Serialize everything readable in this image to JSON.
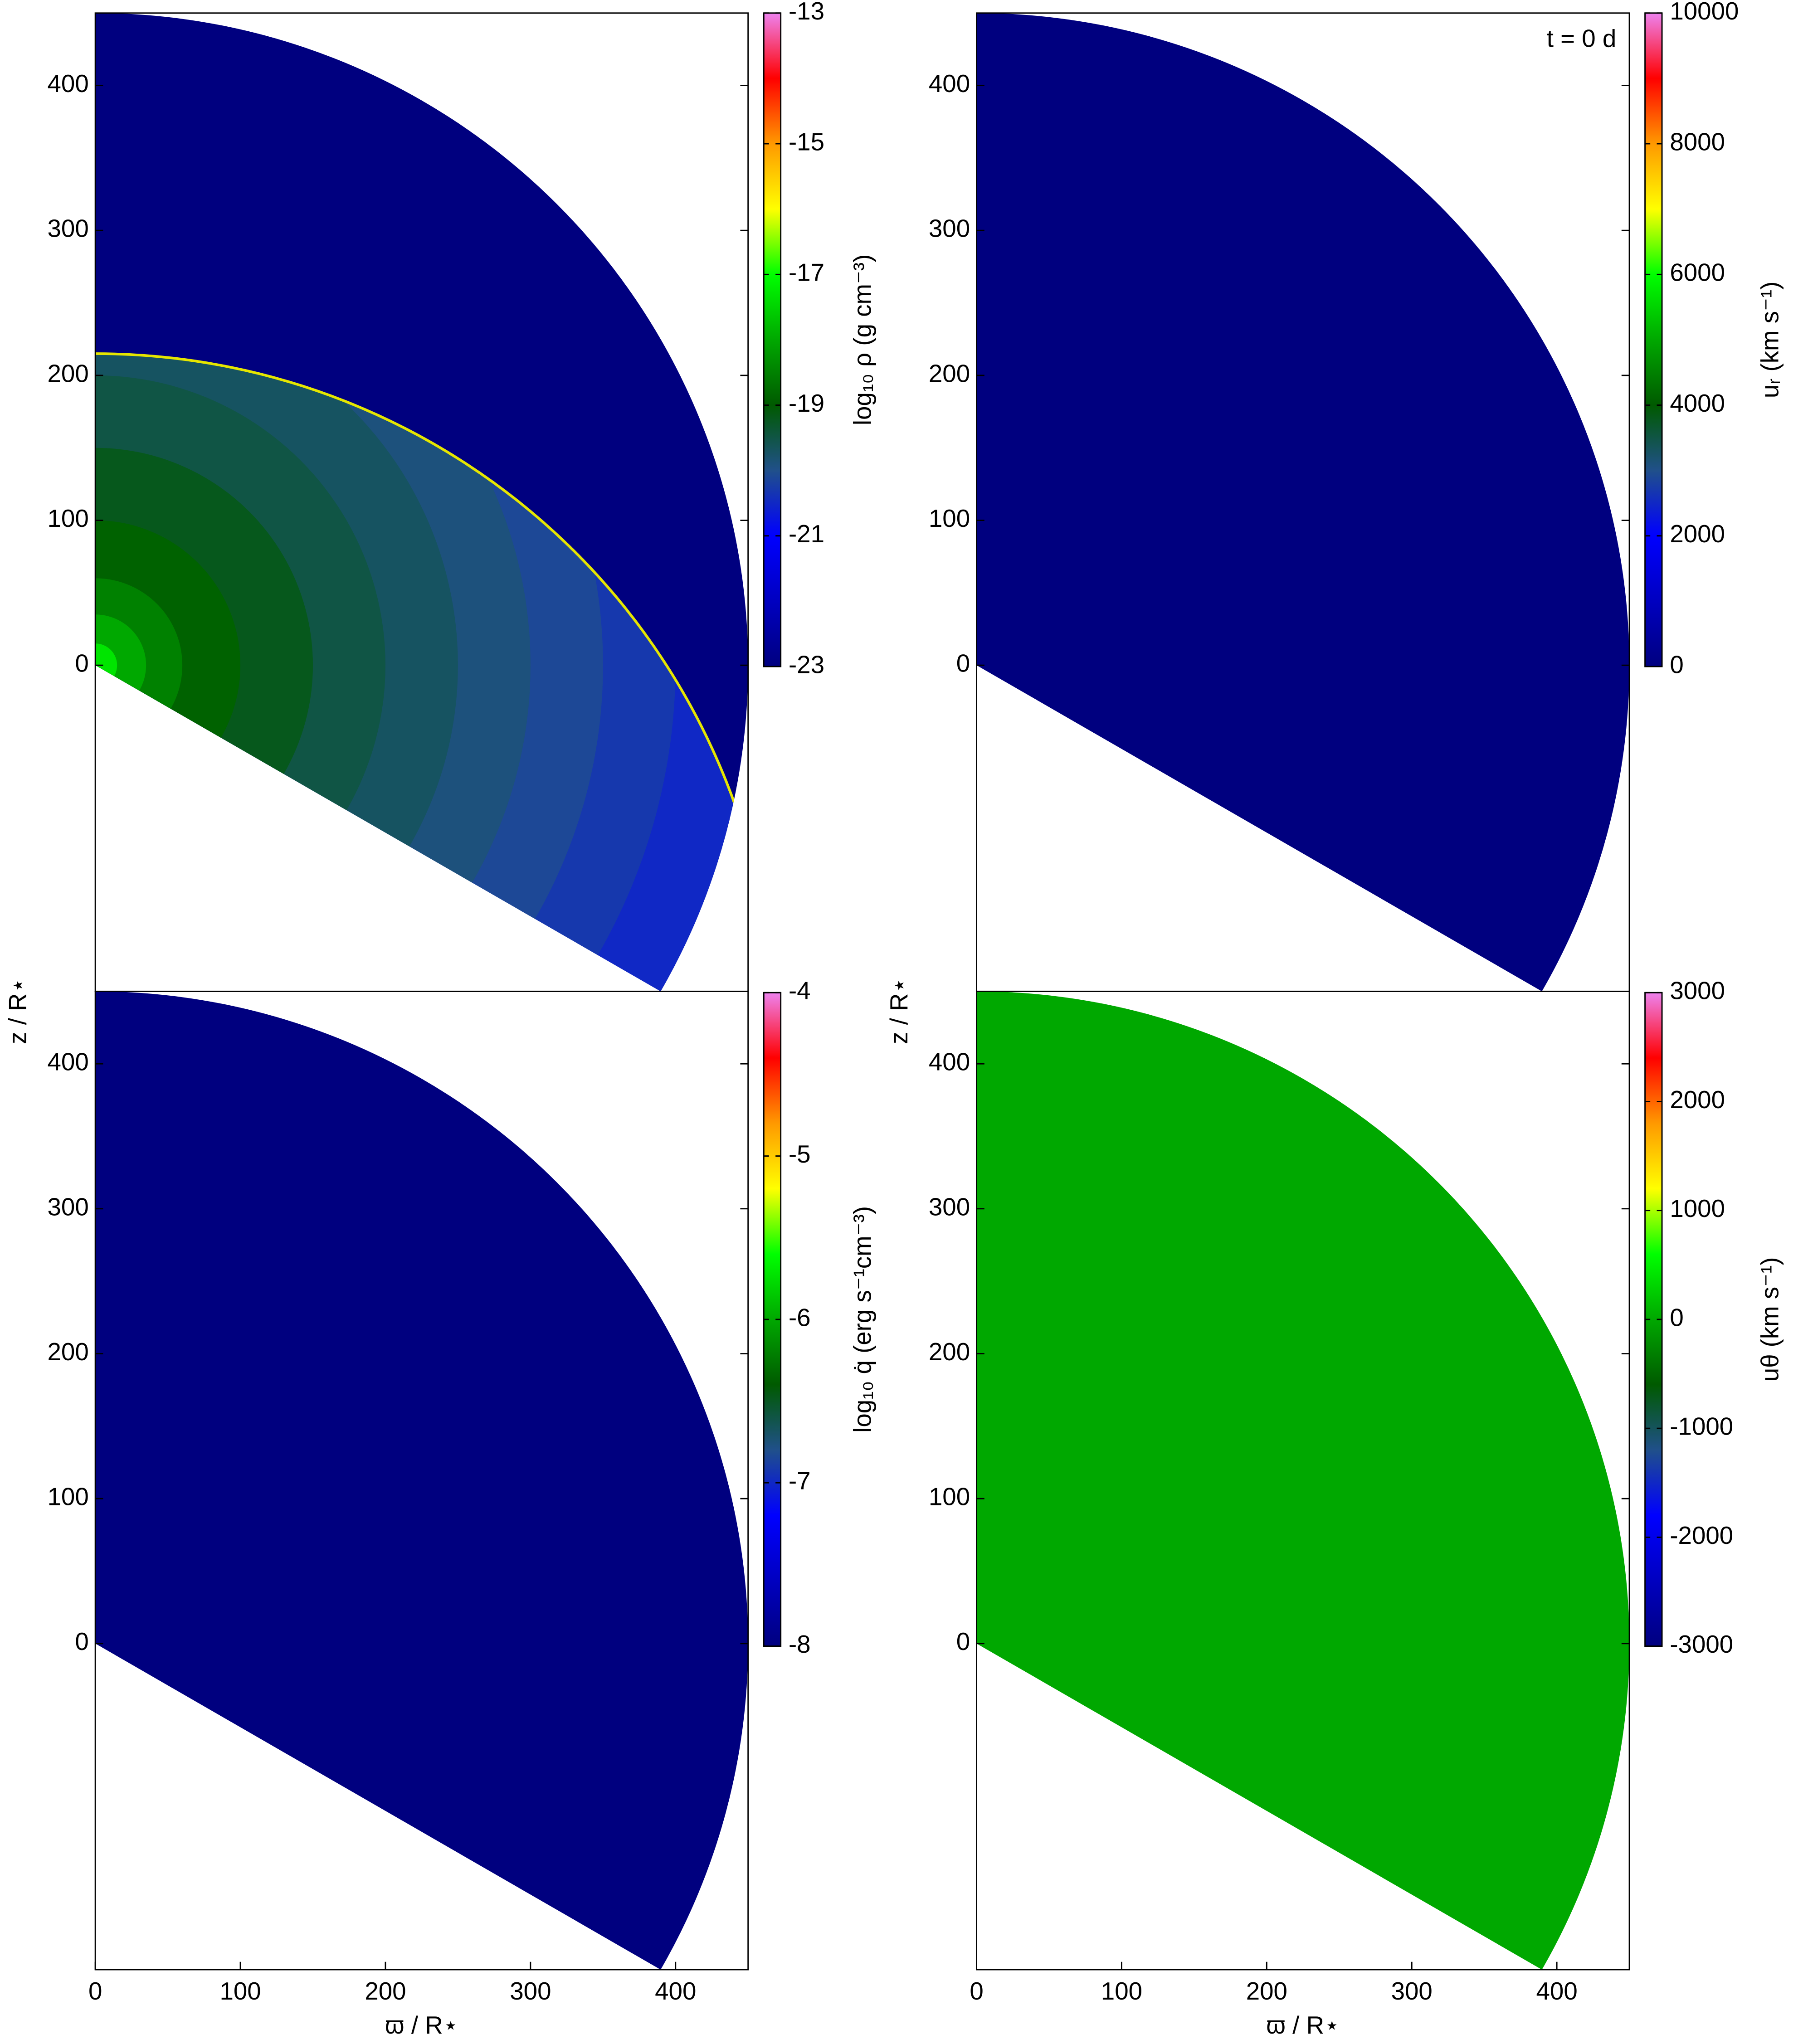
{
  "colormap": [
    "#00007f",
    "#0000c0",
    "#0000ff",
    "#20508a",
    "#005a00",
    "#00a800",
    "#00ff00",
    "#ffff00",
    "#ff9900",
    "#ff0000",
    "#ee82ee"
  ],
  "chart_data": [
    {
      "type": "wedge",
      "xlim": [
        0,
        450
      ],
      "ylim": [
        -225,
        450
      ],
      "yticks": [
        0,
        100,
        200,
        300,
        400
      ],
      "wedge": {
        "r": 450,
        "angles": [
          90,
          -30
        ]
      },
      "colorbar": {
        "label": "log₁₀ ρ (g cm⁻³)",
        "clim": [
          -23,
          -13
        ],
        "ticks": [
          -23,
          -21,
          -19,
          -17,
          -15,
          -13
        ]
      },
      "field": {
        "value": -23,
        "front": {
          "center": [
            0,
            -253
          ],
          "radius": 468,
          "color": "#e6e600"
        },
        "profile": {
          "r": [
            450,
            400,
            350,
            300,
            250,
            200,
            150,
            100,
            60,
            35,
            15
          ],
          "values": [
            -20.5,
            -20.3,
            -20.1,
            -19.9,
            -19.7,
            -19.5,
            -19.2,
            -18.9,
            -18.5,
            -18,
            -17.3
          ]
        }
      }
    },
    {
      "type": "wedge",
      "xlim": [
        0,
        450
      ],
      "ylim": [
        -225,
        450
      ],
      "yticks": [
        0,
        100,
        200,
        300,
        400
      ],
      "wedge": {
        "r": 450,
        "angles": [
          90,
          -30
        ]
      },
      "annotation": "t = 0 d",
      "colorbar": {
        "label": "uᵣ (km s⁻¹)",
        "clim": [
          0,
          10000
        ],
        "ticks": [
          0,
          2000,
          4000,
          6000,
          8000,
          10000
        ]
      },
      "field": {
        "value": 0
      }
    },
    {
      "type": "wedge",
      "xlim": [
        0,
        450
      ],
      "ylim": [
        -225,
        450
      ],
      "yticks": [
        0,
        100,
        200,
        300,
        400
      ],
      "xticks": [
        0,
        100,
        200,
        300,
        400
      ],
      "xlabel": "ϖ / R⋆",
      "ylabel": "z / R⋆",
      "wedge": {
        "r": 450,
        "angles": [
          90,
          -30
        ]
      },
      "colorbar": {
        "label": "log₁₀ q̇ (erg s⁻¹cm⁻³)",
        "clim": [
          -8,
          -4
        ],
        "ticks": [
          -8,
          -7,
          -6,
          -5,
          -4
        ]
      },
      "field": {
        "value": -8
      }
    },
    {
      "type": "wedge",
      "xlim": [
        0,
        450
      ],
      "ylim": [
        -225,
        450
      ],
      "yticks": [
        0,
        100,
        200,
        300,
        400
      ],
      "xticks": [
        0,
        100,
        200,
        300,
        400
      ],
      "xlabel": "ϖ / R⋆",
      "ylabel": "z / R⋆",
      "wedge": {
        "r": 450,
        "angles": [
          90,
          -30
        ]
      },
      "colorbar": {
        "label": "uθ (km s⁻¹)",
        "clim": [
          -3000,
          3000
        ],
        "ticks": [
          -3000,
          -2000,
          -1000,
          0,
          1000,
          2000,
          3000
        ]
      },
      "field": {
        "value": 0
      }
    }
  ]
}
